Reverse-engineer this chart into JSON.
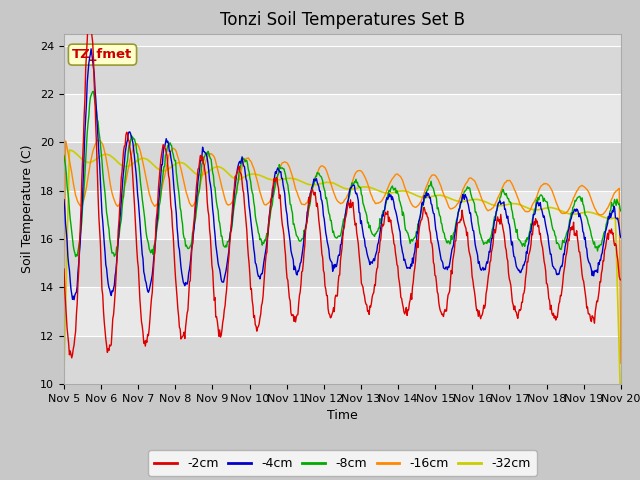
{
  "title": "Tonzi Soil Temperatures Set B",
  "xlabel": "Time",
  "ylabel": "Soil Temperature (C)",
  "ylim": [
    10,
    24.5
  ],
  "annotation_text": "TZ_fmet",
  "annotation_color": "#cc0000",
  "annotation_bg": "#ffffcc",
  "series_colors": {
    "-2cm": "#dd0000",
    "-4cm": "#0000cc",
    "-8cm": "#00aa00",
    "-16cm": "#ff8800",
    "-32cm": "#cccc00"
  },
  "legend_entries": [
    "-2cm",
    "-4cm",
    "-8cm",
    "-16cm",
    "-32cm"
  ],
  "xtick_labels": [
    "Nov 5",
    "Nov 6",
    "Nov 7",
    "Nov 8",
    "Nov 9",
    "Nov 10",
    "Nov 11",
    "Nov 12",
    "Nov 13",
    "Nov 14",
    "Nov 15",
    "Nov 16",
    "Nov 17",
    "Nov 18",
    "Nov 19",
    "Nov 20"
  ],
  "title_fontsize": 12,
  "axis_fontsize": 9,
  "tick_fontsize": 8
}
